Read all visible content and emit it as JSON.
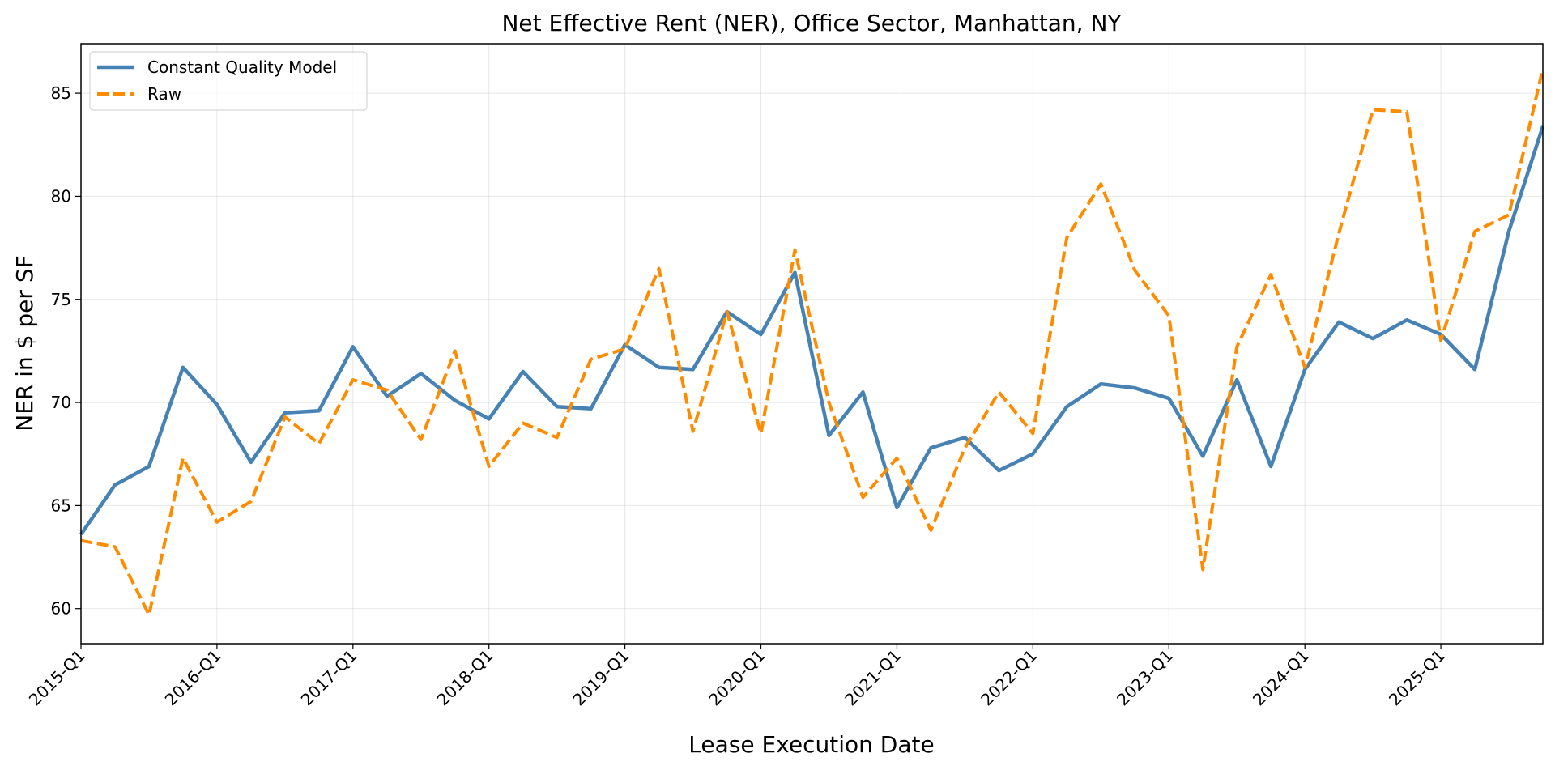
{
  "chart_data": {
    "type": "line",
    "title": "Net Effective Rent (NER), Office Sector, Manhattan, NY",
    "xlabel": "Lease Execution Date",
    "ylabel": "NER in $ per SF",
    "ylim": [
      58.3,
      87.4
    ],
    "yticks": [
      60,
      65,
      70,
      75,
      80,
      85
    ],
    "x": [
      "2015-Q1",
      "2015-Q2",
      "2015-Q3",
      "2015-Q4",
      "2016-Q1",
      "2016-Q2",
      "2016-Q3",
      "2016-Q4",
      "2017-Q1",
      "2017-Q2",
      "2017-Q3",
      "2017-Q4",
      "2018-Q1",
      "2018-Q2",
      "2018-Q3",
      "2018-Q4",
      "2019-Q1",
      "2019-Q2",
      "2019-Q3",
      "2019-Q4",
      "2020-Q1",
      "2020-Q2",
      "2020-Q3",
      "2020-Q4",
      "2021-Q1",
      "2021-Q2",
      "2021-Q3",
      "2021-Q4",
      "2022-Q1",
      "2022-Q2",
      "2022-Q3",
      "2022-Q4",
      "2023-Q1",
      "2023-Q2",
      "2023-Q3",
      "2023-Q4",
      "2024-Q1",
      "2024-Q2",
      "2024-Q3",
      "2024-Q4",
      "2025-Q1",
      "2025-Q2",
      "2025-Q3",
      "2025-Q4"
    ],
    "xticks": [
      "2015-Q1",
      "2016-Q1",
      "2017-Q1",
      "2018-Q1",
      "2019-Q1",
      "2020-Q1",
      "2021-Q1",
      "2022-Q1",
      "2023-Q1",
      "2024-Q1",
      "2025-Q1"
    ],
    "grid": true,
    "legend_position": "upper-left",
    "series": [
      {
        "name": "Constant Quality Model",
        "color": "#4682b4",
        "style": "solid",
        "values": [
          63.6,
          66.0,
          66.9,
          71.7,
          69.9,
          67.1,
          69.5,
          69.6,
          72.7,
          70.3,
          71.4,
          70.1,
          69.2,
          71.5,
          69.8,
          69.7,
          72.8,
          71.7,
          71.6,
          74.4,
          73.3,
          76.3,
          68.4,
          70.5,
          64.9,
          67.8,
          68.3,
          66.7,
          67.5,
          69.8,
          70.9,
          70.7,
          70.2,
          67.4,
          71.1,
          66.9,
          71.6,
          73.9,
          73.1,
          74.0,
          73.3,
          71.6,
          78.3,
          83.4
        ]
      },
      {
        "name": "Raw",
        "color": "#ff8c00",
        "style": "dashed",
        "values": [
          63.3,
          63.0,
          59.7,
          67.3,
          64.2,
          65.2,
          69.3,
          68.0,
          71.1,
          70.6,
          68.2,
          72.5,
          66.9,
          69.0,
          68.3,
          72.1,
          72.6,
          76.5,
          68.6,
          74.4,
          68.5,
          77.4,
          70.0,
          65.4,
          67.3,
          63.8,
          67.8,
          70.5,
          68.5,
          78.0,
          80.6,
          76.4,
          74.2,
          61.9,
          72.7,
          76.2,
          71.7,
          78.2,
          84.2,
          84.1,
          73.0,
          78.3,
          79.1,
          86.2
        ]
      }
    ]
  }
}
